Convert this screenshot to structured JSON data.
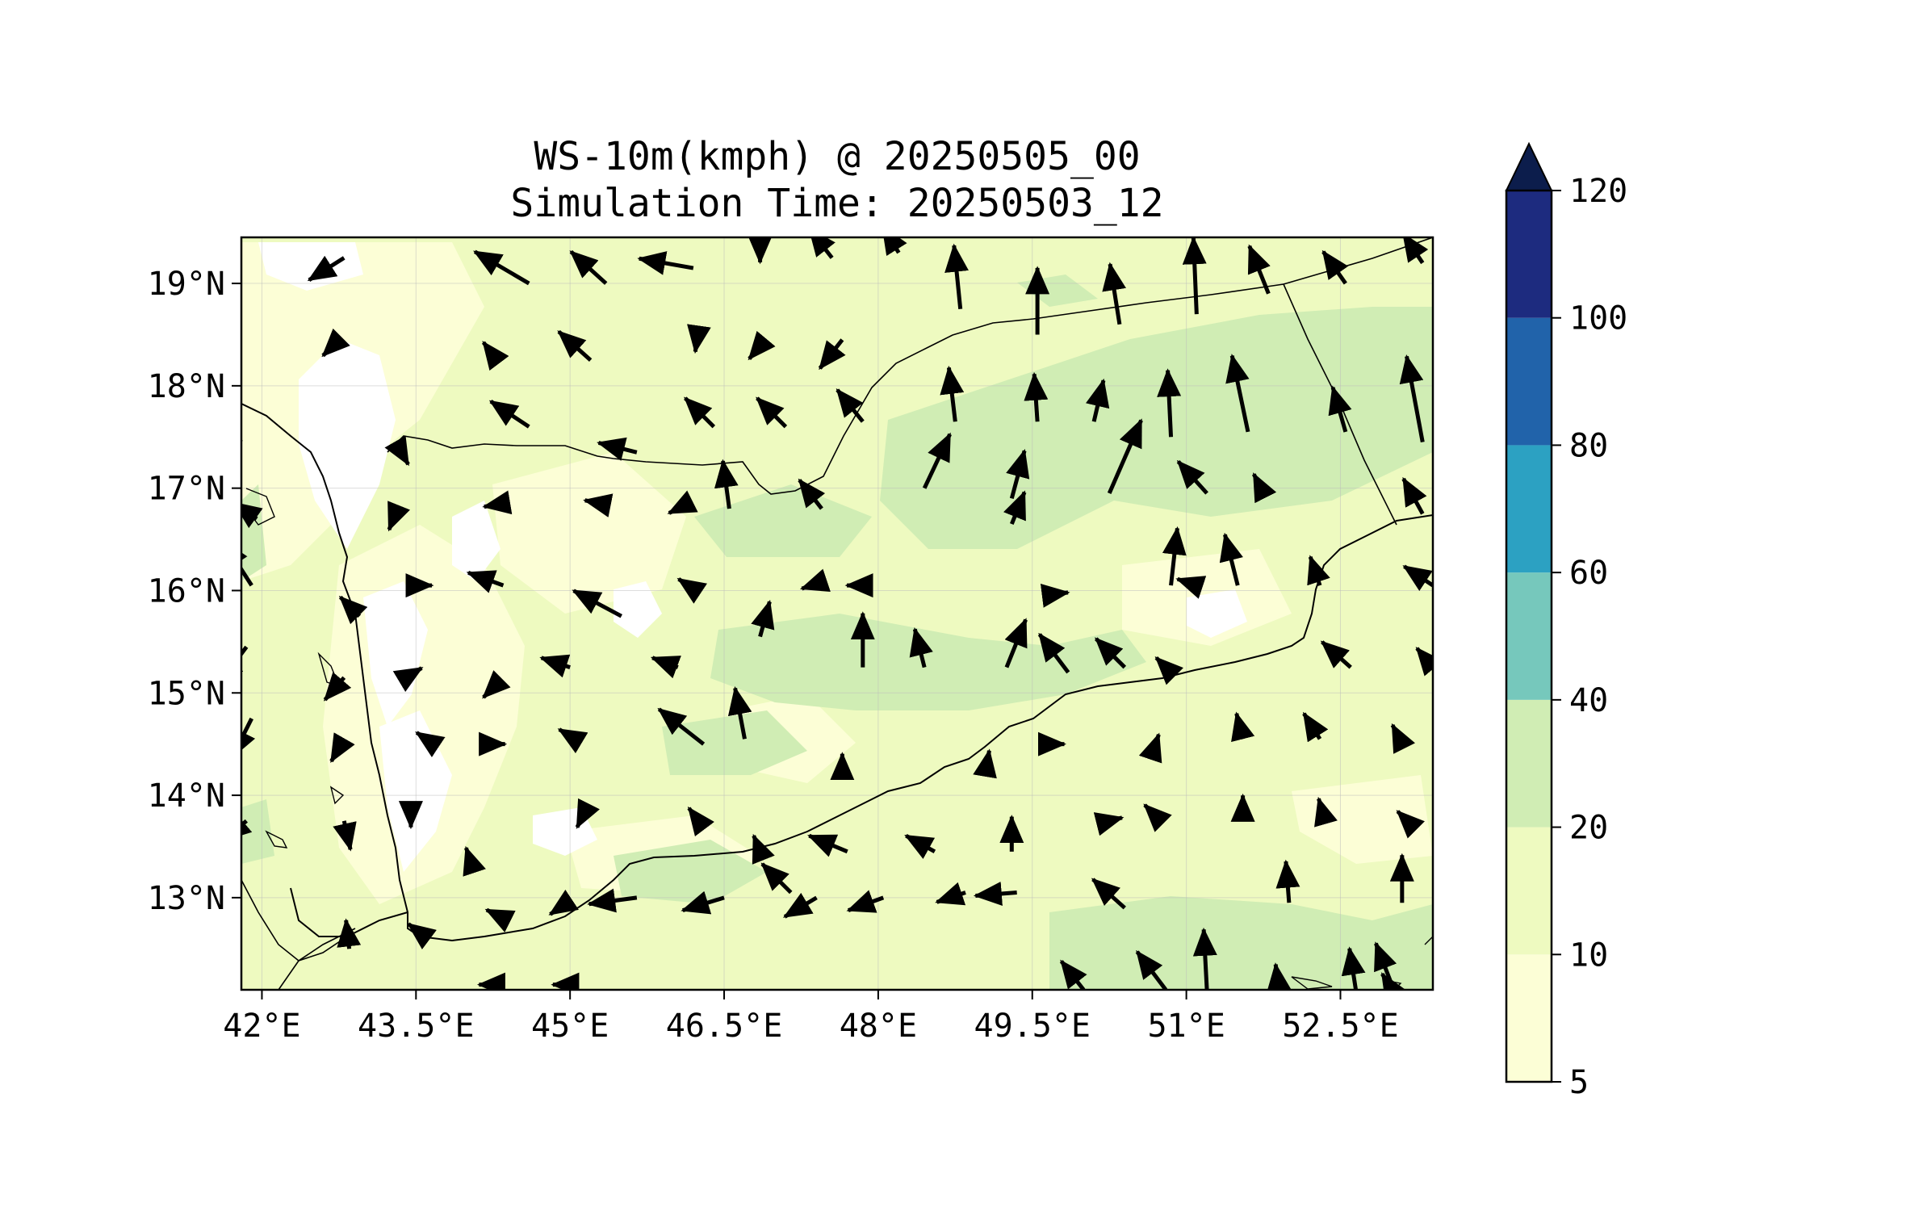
{
  "title": {
    "line1": "WS-10m(kmph) @ 20250505_00",
    "line2": "Simulation Time: 20250503_12"
  },
  "map": {
    "lon_range": [
      41.8,
      53.4
    ],
    "lat_range": [
      12.1,
      19.45
    ],
    "x_ticks": [
      {
        "value": 42.0,
        "label": "42°E"
      },
      {
        "value": 43.5,
        "label": "43.5°E"
      },
      {
        "value": 45.0,
        "label": "45°E"
      },
      {
        "value": 46.5,
        "label": "46.5°E"
      },
      {
        "value": 48.0,
        "label": "48°E"
      },
      {
        "value": 49.5,
        "label": "49.5°E"
      },
      {
        "value": 51.0,
        "label": "51°E"
      },
      {
        "value": 52.5,
        "label": "52.5°E"
      }
    ],
    "y_ticks": [
      {
        "value": 19,
        "label": "19°N"
      },
      {
        "value": 18,
        "label": "18°N"
      },
      {
        "value": 17,
        "label": "17°N"
      },
      {
        "value": 16,
        "label": "16°N"
      },
      {
        "value": 15,
        "label": "15°N"
      },
      {
        "value": 14,
        "label": "14°N"
      },
      {
        "value": 13,
        "label": "13°N"
      }
    ],
    "grid": true,
    "fill_colors": {
      "low": "#ffffff",
      "c5_10": "#fcfed6",
      "c10_20": "#eefac0",
      "c20_40": "#d0edb4"
    },
    "coastline_color": "#000000",
    "arrow_color": "#000000"
  },
  "colorbar": {
    "levels": [
      5,
      10,
      20,
      40,
      60,
      80,
      100,
      120
    ],
    "labels": [
      "5",
      "10",
      "20",
      "40",
      "60",
      "80",
      "100",
      "120"
    ],
    "colors": [
      "#fcfed6",
      "#eefac0",
      "#d0edb4",
      "#76c8bc",
      "#2ca1c2",
      "#2163aa",
      "#1d2b7f"
    ],
    "extend_color": "#0c1d4c",
    "extend": "max"
  },
  "chart_data": {
    "type": "contourf + quiver",
    "variable": "WS-10m(kmph)",
    "x_range": [
      41.8,
      53.4
    ],
    "y_range": [
      12.1,
      19.45
    ],
    "wind_vectors": [
      [
        42.8,
        19.25,
        -0.55,
        -0.35
      ],
      [
        44.6,
        19.0,
        -0.85,
        0.5
      ],
      [
        45.35,
        19.0,
        -0.55,
        0.5
      ],
      [
        46.2,
        19.15,
        -0.85,
        0.15
      ],
      [
        46.85,
        19.3,
        0.0,
        -0.15
      ],
      [
        47.55,
        19.25,
        -0.35,
        0.45
      ],
      [
        48.2,
        19.3,
        -0.25,
        0.4
      ],
      [
        48.8,
        18.75,
        -0.1,
        1.0
      ],
      [
        49.55,
        18.5,
        0.0,
        1.05
      ],
      [
        50.35,
        18.6,
        -0.15,
        0.95
      ],
      [
        51.1,
        18.7,
        -0.05,
        1.2
      ],
      [
        51.8,
        18.9,
        -0.3,
        0.75
      ],
      [
        52.55,
        19.0,
        -0.35,
        0.5
      ],
      [
        53.3,
        19.2,
        -0.3,
        0.45
      ],
      [
        42.75,
        18.45,
        -0.25,
        -0.25
      ],
      [
        44.25,
        18.3,
        -0.15,
        0.2
      ],
      [
        45.2,
        18.25,
        -0.5,
        0.45
      ],
      [
        46.25,
        18.55,
        -0.05,
        -0.35
      ],
      [
        46.9,
        18.45,
        -0.25,
        -0.3
      ],
      [
        47.65,
        18.45,
        -0.35,
        -0.45
      ],
      [
        48.75,
        17.65,
        -0.1,
        0.85
      ],
      [
        49.55,
        17.65,
        -0.05,
        0.75
      ],
      [
        50.1,
        17.65,
        0.15,
        0.65
      ],
      [
        50.85,
        17.5,
        -0.05,
        1.05
      ],
      [
        51.6,
        17.55,
        -0.25,
        1.2
      ],
      [
        52.55,
        17.55,
        -0.2,
        0.7
      ],
      [
        53.3,
        17.45,
        -0.25,
        1.35
      ],
      [
        41.8,
        17.45,
        -0.5,
        0.5
      ],
      [
        43.3,
        17.45,
        0.2,
        -0.35
      ],
      [
        44.6,
        17.6,
        -0.6,
        0.4
      ],
      [
        45.65,
        17.35,
        -0.6,
        0.15
      ],
      [
        46.4,
        17.6,
        -0.45,
        0.45
      ],
      [
        47.1,
        17.6,
        -0.45,
        0.45
      ],
      [
        47.85,
        17.65,
        -0.4,
        0.5
      ],
      [
        48.45,
        17.0,
        0.4,
        0.85
      ],
      [
        49.3,
        16.9,
        0.2,
        0.75
      ],
      [
        50.25,
        16.95,
        0.5,
        1.15
      ],
      [
        51.2,
        16.95,
        -0.45,
        0.5
      ],
      [
        51.75,
        16.95,
        -0.15,
        0.3
      ],
      [
        53.3,
        16.75,
        -0.3,
        0.55
      ],
      [
        41.95,
        16.7,
        -0.35,
        0.25
      ],
      [
        43.3,
        16.75,
        -0.1,
        -0.25
      ],
      [
        44.35,
        16.85,
        -0.3,
        -0.05
      ],
      [
        45.3,
        16.85,
        -0.25,
        0.05
      ],
      [
        46.15,
        16.85,
        -0.3,
        -0.15
      ],
      [
        46.55,
        16.8,
        -0.1,
        0.75
      ],
      [
        47.45,
        16.8,
        -0.35,
        0.45
      ],
      [
        49.3,
        16.65,
        0.2,
        0.5
      ],
      [
        50.85,
        16.05,
        0.1,
        0.9
      ],
      [
        51.5,
        16.05,
        -0.2,
        0.8
      ],
      [
        52.3,
        16.05,
        -0.15,
        0.45
      ],
      [
        53.4,
        16.05,
        -0.45,
        0.3
      ],
      [
        41.9,
        16.05,
        -0.45,
        0.7
      ],
      [
        42.95,
        15.75,
        -0.3,
        0.3
      ],
      [
        43.5,
        16.05,
        0.25,
        0.0
      ],
      [
        44.35,
        16.05,
        -0.55,
        0.2
      ],
      [
        45.5,
        15.75,
        -0.75,
        0.4
      ],
      [
        46.15,
        16.05,
        -0.15,
        0.1
      ],
      [
        46.85,
        15.55,
        0.15,
        0.55
      ],
      [
        47.35,
        16.05,
        -0.15,
        -0.05
      ],
      [
        47.85,
        16.05,
        -0.25,
        0.0
      ],
      [
        47.85,
        15.25,
        0.0,
        0.85
      ],
      [
        48.45,
        15.25,
        -0.15,
        0.6
      ],
      [
        49.25,
        15.25,
        0.3,
        0.75
      ],
      [
        49.85,
        15.2,
        -0.45,
        0.6
      ],
      [
        51.1,
        16.05,
        -0.3,
        0.1
      ],
      [
        49.6,
        15.95,
        0.4,
        0.05
      ],
      [
        50.4,
        15.25,
        -0.45,
        0.45
      ],
      [
        50.8,
        15.25,
        -0.15,
        0.15
      ],
      [
        52.6,
        15.25,
        -0.45,
        0.4
      ],
      [
        53.4,
        15.25,
        -0.25,
        0.3
      ],
      [
        41.85,
        15.45,
        -0.45,
        -0.6
      ],
      [
        42.8,
        15.15,
        -0.3,
        -0.35
      ],
      [
        43.4,
        15.15,
        0.25,
        0.15
      ],
      [
        44.25,
        15.05,
        -0.15,
        -0.15
      ],
      [
        45.0,
        15.25,
        -0.45,
        0.15
      ],
      [
        46.05,
        15.25,
        -0.4,
        0.15
      ],
      [
        46.3,
        14.5,
        -0.7,
        0.55
      ],
      [
        46.7,
        14.55,
        -0.15,
        0.8
      ],
      [
        47.65,
        14.25,
        0.0,
        0.25
      ],
      [
        49.05,
        14.25,
        0.05,
        0.3
      ],
      [
        49.75,
        14.5,
        0.1,
        0.0
      ],
      [
        50.7,
        14.5,
        0.05,
        0.15
      ],
      [
        51.55,
        14.55,
        -0.1,
        0.4
      ],
      [
        52.3,
        14.55,
        -0.25,
        0.4
      ],
      [
        53.1,
        14.5,
        -0.15,
        0.3
      ],
      [
        41.9,
        14.75,
        -0.3,
        -0.6
      ],
      [
        42.8,
        14.55,
        -0.2,
        -0.35
      ],
      [
        43.6,
        14.55,
        -0.15,
        0.1
      ],
      [
        44.15,
        14.5,
        0.35,
        0.0
      ],
      [
        45.05,
        14.55,
        -0.25,
        0.15
      ],
      [
        46.25,
        13.75,
        -0.15,
        0.2
      ],
      [
        46.85,
        13.45,
        -0.1,
        0.25
      ],
      [
        47.15,
        13.05,
        -0.45,
        0.45
      ],
      [
        47.7,
        13.45,
        -0.6,
        0.25
      ],
      [
        48.55,
        13.45,
        -0.45,
        0.25
      ],
      [
        49.3,
        13.45,
        0.0,
        0.55
      ],
      [
        50.25,
        13.75,
        0.2,
        0.05
      ],
      [
        50.75,
        13.75,
        -0.25,
        0.25
      ],
      [
        51.55,
        13.75,
        0.0,
        0.4
      ],
      [
        52.35,
        13.75,
        -0.1,
        0.35
      ],
      [
        53.1,
        12.95,
        0.0,
        0.75
      ],
      [
        53.15,
        13.75,
        -0.15,
        0.15
      ],
      [
        41.85,
        13.75,
        -0.35,
        -0.3
      ],
      [
        42.8,
        13.75,
        0.1,
        -0.45
      ],
      [
        43.45,
        13.75,
        0.0,
        -0.1
      ],
      [
        44.05,
        13.3,
        -0.1,
        0.3
      ],
      [
        45.1,
        13.75,
        -0.05,
        -0.1
      ],
      [
        45.65,
        13.0,
        -0.75,
        -0.1
      ],
      [
        46.5,
        13.0,
        -0.65,
        -0.2
      ],
      [
        47.4,
        13.0,
        -0.5,
        -0.3
      ],
      [
        48.05,
        13.0,
        -0.55,
        -0.2
      ],
      [
        48.85,
        13.05,
        -0.45,
        -0.15
      ],
      [
        49.35,
        13.05,
        -0.65,
        -0.05
      ],
      [
        50.4,
        12.9,
        -0.5,
        0.45
      ],
      [
        51.2,
        12.1,
        -0.05,
        0.95
      ],
      [
        52.0,
        12.95,
        -0.05,
        0.65
      ],
      [
        52.65,
        12.1,
        -0.1,
        0.65
      ],
      [
        53.0,
        12.15,
        -0.25,
        0.65
      ],
      [
        42.85,
        12.5,
        -0.05,
        0.45
      ],
      [
        43.55,
        12.65,
        -0.2,
        0.15
      ],
      [
        44.25,
        12.85,
        -0.1,
        0.05
      ],
      [
        44.9,
        12.9,
        -0.15,
        -0.1
      ],
      [
        50.0,
        12.1,
        -0.35,
        0.45
      ],
      [
        50.8,
        12.1,
        -0.45,
        0.6
      ],
      [
        51.9,
        12.1,
        -0.05,
        0.4
      ],
      [
        53.0,
        12.1,
        -0.15,
        0.25
      ],
      [
        44.3,
        12.15,
        -0.3,
        0.0
      ],
      [
        45.05,
        12.15,
        -0.35,
        0.0
      ]
    ]
  }
}
